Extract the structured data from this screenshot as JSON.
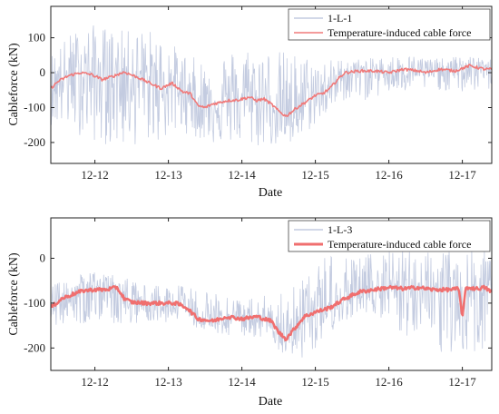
{
  "chart_data": [
    {
      "type": "line",
      "xlabel": "Date",
      "ylabel": "Cableforce (kN)",
      "x_ticks": [
        "12-12",
        "12-13",
        "12-14",
        "12-15",
        "12-16",
        "12-17"
      ],
      "xlim": [
        0,
        6
      ],
      "ylim": [
        -260,
        190
      ],
      "y_ticks": [
        -200,
        -100,
        0,
        100
      ],
      "grid": false,
      "legend_position": "top-right",
      "series": [
        {
          "name": "1-L-1",
          "color": "#c3cbe0",
          "style": "noisy-band",
          "x": [
            0,
            0.3,
            0.6,
            1.0,
            1.3,
            1.5,
            1.8,
            2.0,
            2.3,
            2.5,
            2.7,
            3.0,
            3.3,
            3.5,
            3.7,
            4.0,
            4.3,
            4.6,
            4.8,
            5.0,
            5.3,
            5.6,
            5.9,
            6.0
          ],
          "upper": [
            60,
            120,
            140,
            120,
            130,
            110,
            60,
            40,
            60,
            70,
            80,
            70,
            60,
            50,
            40,
            40,
            40,
            50,
            50,
            50,
            40,
            50,
            40,
            40
          ],
          "lower": [
            -150,
            -170,
            -200,
            -220,
            -200,
            -200,
            -170,
            -190,
            -210,
            -200,
            -220,
            -210,
            -220,
            -170,
            -130,
            -80,
            -80,
            -60,
            -60,
            -50,
            -50,
            -60,
            -50,
            -50
          ]
        },
        {
          "name": "Temperature-induced cable force",
          "color": "#f07a7a",
          "x": [
            0,
            0.1,
            0.25,
            0.4,
            0.55,
            0.7,
            0.85,
            1.0,
            1.2,
            1.35,
            1.5,
            1.65,
            1.8,
            1.9,
            2.0,
            2.1,
            2.2,
            2.3,
            2.4,
            2.55,
            2.7,
            2.8,
            2.9,
            3.0,
            3.1,
            3.2,
            3.35,
            3.5,
            3.6,
            3.7,
            3.8,
            3.9,
            4.0,
            4.2,
            4.4,
            4.6,
            4.8,
            5.0,
            5.1,
            5.2,
            5.3,
            5.5,
            5.7,
            5.9,
            6.0
          ],
          "y": [
            -45,
            -25,
            -8,
            0,
            -5,
            -20,
            -10,
            2,
            -15,
            -30,
            -45,
            -30,
            -55,
            -60,
            -95,
            -100,
            -90,
            -85,
            -80,
            -78,
            -70,
            -80,
            -75,
            -90,
            -110,
            -125,
            -100,
            -80,
            -65,
            -60,
            -45,
            -20,
            0,
            5,
            5,
            0,
            10,
            5,
            0,
            5,
            10,
            5,
            20,
            10,
            10
          ]
        }
      ]
    },
    {
      "type": "line",
      "xlabel": "Date",
      "ylabel": "Cableforce (kN)",
      "x_ticks": [
        "12-12",
        "12-13",
        "12-14",
        "12-15",
        "12-16",
        "12-17"
      ],
      "xlim": [
        0,
        6
      ],
      "ylim": [
        -250,
        90
      ],
      "y_ticks": [
        -200,
        -100,
        0
      ],
      "grid": false,
      "legend_position": "top-right",
      "series": [
        {
          "name": "1-L-3",
          "color": "#c3cbe0",
          "style": "noisy-band",
          "x": [
            0,
            0.3,
            0.6,
            1.0,
            1.3,
            1.5,
            1.8,
            2.0,
            2.3,
            2.5,
            2.7,
            3.0,
            3.3,
            3.5,
            3.7,
            4.0,
            4.3,
            4.6,
            4.8,
            5.0,
            5.3,
            5.6,
            5.9,
            6.0
          ],
          "upper": [
            -60,
            -40,
            -30,
            -40,
            -60,
            -60,
            -60,
            -70,
            -80,
            -90,
            -80,
            -80,
            -60,
            -30,
            0,
            10,
            10,
            20,
            20,
            20,
            10,
            30,
            20,
            0
          ],
          "lower": [
            -150,
            -150,
            -140,
            -150,
            -140,
            -140,
            -150,
            -160,
            -170,
            -180,
            -170,
            -200,
            -220,
            -230,
            -180,
            -140,
            -120,
            -150,
            -180,
            -200,
            -210,
            -210,
            -220,
            -210
          ]
        },
        {
          "name": "Temperature-induced cable force",
          "color": "#f06f6f",
          "x": [
            0,
            0.15,
            0.3,
            0.45,
            0.6,
            0.75,
            0.9,
            1.0,
            1.1,
            1.3,
            1.5,
            1.7,
            1.85,
            2.0,
            2.2,
            2.4,
            2.6,
            2.8,
            3.0,
            3.1,
            3.2,
            3.3,
            3.45,
            3.6,
            3.8,
            4.0,
            4.2,
            4.4,
            4.6,
            4.8,
            5.0,
            5.2,
            5.4,
            5.55,
            5.6,
            5.65,
            5.8,
            5.9,
            6.0
          ],
          "y": [
            -110,
            -90,
            -80,
            -72,
            -70,
            -70,
            -65,
            -90,
            -98,
            -100,
            -100,
            -100,
            -110,
            -135,
            -140,
            -130,
            -135,
            -130,
            -140,
            -165,
            -180,
            -160,
            -130,
            -120,
            -110,
            -90,
            -75,
            -70,
            -65,
            -68,
            -65,
            -70,
            -70,
            -68,
            -130,
            -65,
            -68,
            -65,
            -75
          ]
        }
      ]
    }
  ]
}
